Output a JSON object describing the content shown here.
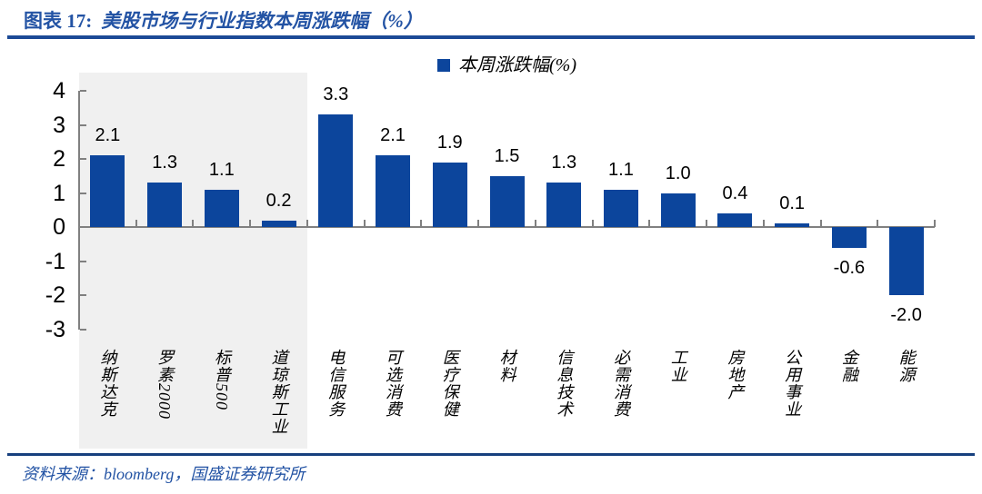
{
  "header": {
    "title_prefix": "图表 17:",
    "title_text": "美股市场与行业指数本周涨跌幅（%）"
  },
  "legend": {
    "label": "本周涨跌幅(%)",
    "swatch_color": "#0C459C"
  },
  "chart_data": {
    "type": "bar",
    "title": "美股市场与行业指数本周涨跌幅（%）",
    "legend_entries": [
      "本周涨跌幅(%)"
    ],
    "legend_position": "top-center",
    "categories": [
      "纳斯达克",
      "罗素2000",
      "标普500",
      "道琼斯工业",
      "电信服务",
      "可选消费",
      "医疗保健",
      "材料",
      "信息技术",
      "必需消费",
      "工业",
      "房地产",
      "公用事业",
      "金融",
      "能源"
    ],
    "values": [
      2.1,
      1.3,
      1.1,
      0.2,
      3.3,
      2.1,
      1.9,
      1.5,
      1.3,
      1.1,
      1.0,
      0.4,
      0.1,
      -0.6,
      -2.0
    ],
    "data_labels": [
      "2.1",
      "1.3",
      "1.1",
      "0.2",
      "3.3",
      "2.1",
      "1.9",
      "1.5",
      "1.3",
      "1.1",
      "1.0",
      "0.4",
      "0.1",
      "-0.6",
      "-2.0"
    ],
    "xlabel": "",
    "ylabel": "",
    "ylim": [
      -3,
      4
    ],
    "yticks": [
      4,
      3,
      2,
      1,
      0,
      -1,
      -2,
      -3
    ],
    "grid": false,
    "bar_color": "#0C459C",
    "axis_color": "#808080",
    "highlight_region": {
      "from_category_index": 0,
      "to_category_index": 3,
      "color": "#F0F0F0",
      "meaning": "market-index group"
    }
  },
  "footer": {
    "source": "资料来源：bloomberg，国盛证券研究所"
  }
}
